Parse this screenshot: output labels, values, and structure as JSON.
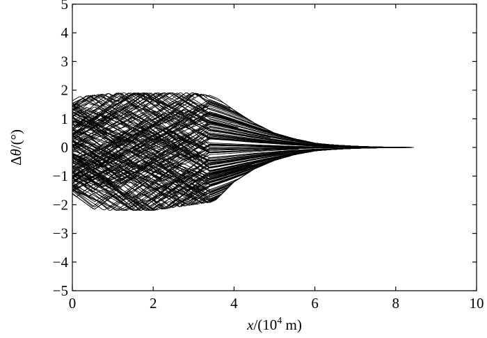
{
  "chart_data": {
    "type": "line",
    "title": "",
    "xlabel": {
      "var": "x",
      "rest": "/(10",
      "exp": "4",
      "unit": " m)"
    },
    "ylabel": {
      "delta": "Δ",
      "var": "θ",
      "rest": "/(°)"
    },
    "xlim": [
      0,
      10
    ],
    "ylim": [
      -5,
      5
    ],
    "xticks": [
      0,
      2,
      4,
      6,
      8,
      10
    ],
    "yticks": [
      -5,
      -4,
      -3,
      -2,
      -1,
      0,
      1,
      2,
      3,
      4,
      5
    ],
    "xtick_labels": [
      "0",
      "2",
      "4",
      "6",
      "8",
      "10"
    ],
    "ytick_labels": [
      "−5",
      "−4",
      "−3",
      "−2",
      "−1",
      "0",
      "1",
      "2",
      "3",
      "4",
      "5"
    ],
    "grid": false,
    "series_style": {
      "color": "#000000",
      "count": 200
    },
    "envelope": {
      "x": [
        0,
        1,
        2,
        3,
        3.5,
        4,
        4.5,
        5,
        5.5,
        6,
        6.5,
        7,
        7.5,
        8,
        8.5
      ],
      "upper": [
        1.75,
        1.9,
        1.9,
        1.9,
        1.8,
        1.3,
        0.85,
        0.5,
        0.3,
        0.15,
        0.09,
        0.07,
        0.06,
        0.05,
        0.05
      ],
      "lower": [
        -2.1,
        -2.2,
        -2.2,
        -2.0,
        -1.9,
        -1.2,
        -0.75,
        -0.45,
        -0.25,
        -0.12,
        -0.07,
        -0.05,
        -0.04,
        -0.03,
        -0.03
      ]
    },
    "x_end": 8.5
  }
}
